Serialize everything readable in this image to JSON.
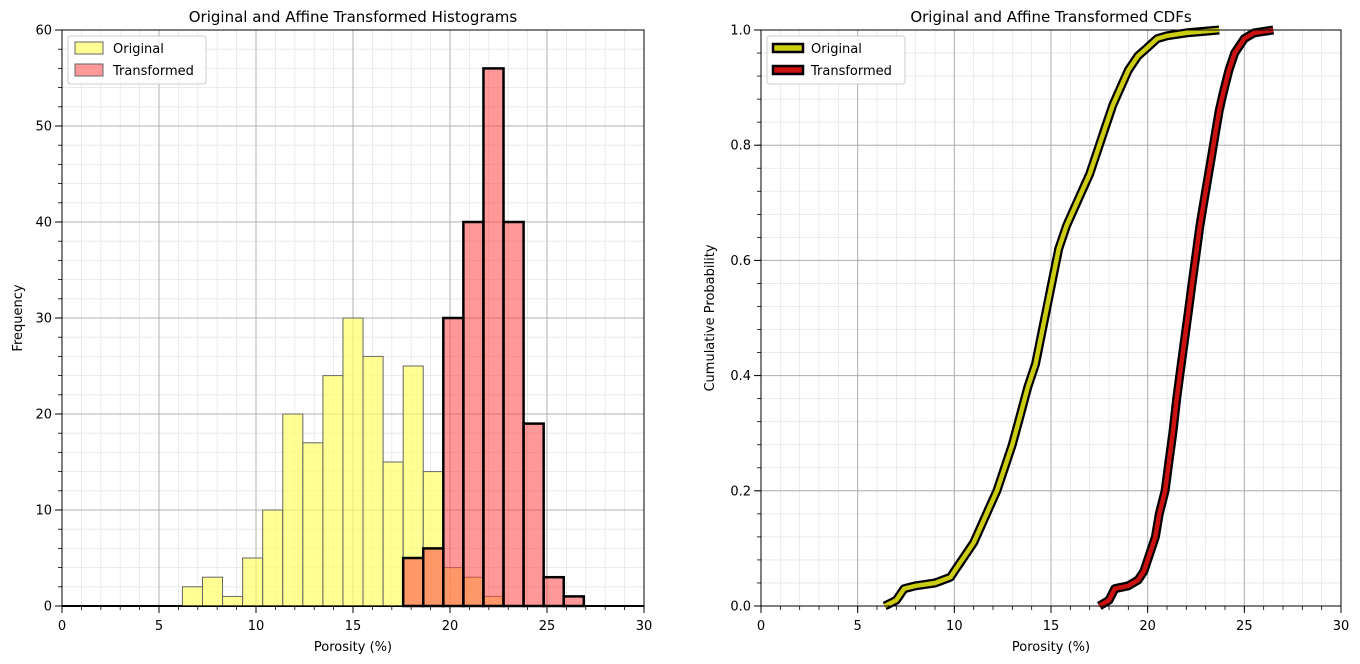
{
  "chart_data": [
    {
      "type": "histogram",
      "title": "Original and Affine Transformed Histograms",
      "xlabel": "Porosity (%)",
      "ylabel": "Frequency",
      "xlim": [
        0,
        30
      ],
      "ylim": [
        0,
        60
      ],
      "xticks": [
        0,
        5,
        10,
        15,
        20,
        25,
        30
      ],
      "yticks": [
        0,
        10,
        20,
        30,
        40,
        50,
        60
      ],
      "grid": true,
      "legend_location": "top-left",
      "series": [
        {
          "name": "Original",
          "color": "#ffff66",
          "edgecolor": "#666666",
          "bin_edges": [
            0.0,
            1.0345,
            2.069,
            3.1034,
            4.1379,
            5.1724,
            6.2069,
            7.2414,
            8.2759,
            9.3103,
            10.3448,
            11.3793,
            12.4138,
            13.4483,
            14.4828,
            15.5172,
            16.5517,
            17.5862,
            18.6207,
            19.6552,
            20.6897,
            21.7241,
            22.7586,
            23.7931,
            24.8276,
            25.8621,
            26.8966,
            27.931,
            28.9655,
            30.0
          ],
          "counts": [
            0,
            0,
            0,
            0,
            0,
            0,
            2,
            3,
            1,
            5,
            10,
            20,
            17,
            24,
            30,
            26,
            15,
            25,
            14,
            4,
            3,
            1,
            0,
            0,
            0,
            0,
            0,
            0,
            0
          ]
        },
        {
          "name": "Transformed",
          "color": "#ff4444",
          "edgecolor": "#000000",
          "bin_edges": [
            0.0,
            1.0345,
            2.069,
            3.1034,
            4.1379,
            5.1724,
            6.2069,
            7.2414,
            8.2759,
            9.3103,
            10.3448,
            11.3793,
            12.4138,
            13.4483,
            14.4828,
            15.5172,
            16.5517,
            17.5862,
            18.6207,
            19.6552,
            20.6897,
            21.7241,
            22.7586,
            23.7931,
            24.8276,
            25.8621,
            26.8966,
            27.931,
            28.9655,
            30.0
          ],
          "counts": [
            0,
            0,
            0,
            0,
            0,
            0,
            0,
            0,
            0,
            0,
            0,
            0,
            0,
            0,
            0,
            0,
            0,
            5,
            6,
            30,
            40,
            56,
            40,
            19,
            3,
            1,
            0,
            0,
            0
          ]
        }
      ]
    },
    {
      "type": "line",
      "title": "Original and Affine Transformed CDFs",
      "xlabel": "Porosity (%)",
      "ylabel": "Cumulative Probability",
      "xlim": [
        0,
        30
      ],
      "ylim": [
        0,
        1.0
      ],
      "xticks": [
        0,
        5,
        10,
        15,
        20,
        25,
        30
      ],
      "yticks": [
        0.0,
        0.2,
        0.4,
        0.6,
        0.8,
        1.0
      ],
      "grid": true,
      "legend_location": "top-left",
      "series": [
        {
          "name": "Original",
          "color": "#cccc11",
          "x": [
            6.4,
            7.0,
            7.4,
            8.0,
            9.0,
            9.8,
            10.0,
            10.3,
            10.6,
            11.0,
            11.4,
            11.8,
            12.2,
            12.6,
            13.0,
            13.4,
            13.8,
            14.2,
            14.5,
            14.8,
            15.1,
            15.4,
            15.8,
            16.2,
            16.6,
            17.0,
            17.4,
            17.8,
            18.2,
            18.6,
            19.0,
            19.5,
            20.0,
            20.5,
            21.0,
            22.0,
            23.7
          ],
          "y": [
            0.0,
            0.01,
            0.03,
            0.035,
            0.04,
            0.05,
            0.06,
            0.075,
            0.09,
            0.11,
            0.14,
            0.17,
            0.2,
            0.24,
            0.28,
            0.33,
            0.38,
            0.42,
            0.47,
            0.52,
            0.57,
            0.62,
            0.66,
            0.69,
            0.72,
            0.75,
            0.79,
            0.83,
            0.87,
            0.9,
            0.93,
            0.955,
            0.97,
            0.985,
            0.99,
            0.995,
            1.0
          ]
        },
        {
          "name": "Transformed",
          "color": "#cc1111",
          "x": [
            17.5,
            18.0,
            18.3,
            19.0,
            19.5,
            19.8,
            20.1,
            20.4,
            20.6,
            20.9,
            21.1,
            21.3,
            21.5,
            21.7,
            21.9,
            22.1,
            22.3,
            22.5,
            22.7,
            22.9,
            23.1,
            23.3,
            23.5,
            23.7,
            23.9,
            24.2,
            24.5,
            25.0,
            25.5,
            26.5
          ],
          "y": [
            0.0,
            0.01,
            0.03,
            0.035,
            0.045,
            0.06,
            0.09,
            0.12,
            0.16,
            0.2,
            0.25,
            0.3,
            0.36,
            0.41,
            0.46,
            0.51,
            0.56,
            0.61,
            0.66,
            0.7,
            0.74,
            0.78,
            0.82,
            0.86,
            0.89,
            0.93,
            0.96,
            0.985,
            0.995,
            1.0
          ]
        }
      ]
    }
  ]
}
